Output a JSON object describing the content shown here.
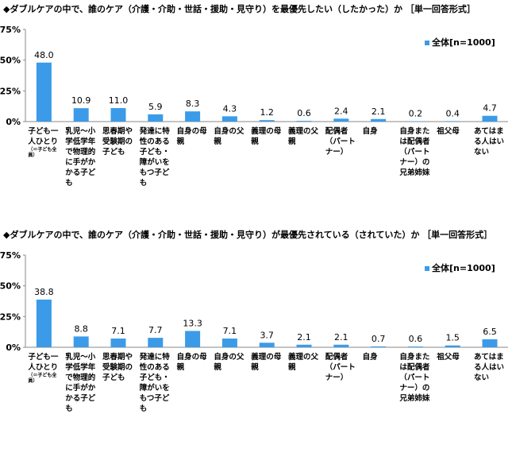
{
  "chart_data": [
    {
      "type": "bar",
      "title": "◆ダブルケアの中で、誰のケア（介護・介助・世話・援助・見守り）を最優先したい（したかった）か ［単一回答形式］",
      "legend": "全体[n=1000]",
      "legend_position": "top-right",
      "ylim": [
        0,
        75
      ],
      "yticks": [
        "0%",
        "25%",
        "50%",
        "75%"
      ],
      "ytick_values": [
        0,
        25,
        50,
        75
      ],
      "grid": false,
      "bar_color": "#3b9be8",
      "categories": [
        "子ども一人ひとり",
        "乳児～小学低学年で物理的に手がかかる子ども",
        "思春期や受験期の子ども",
        "発達に特性のある子ども・障がいをもつ子ども",
        "自身の母親",
        "自身の父親",
        "義理の母親",
        "義理の父親",
        "配偶者（パートナー）",
        "自身",
        "自身または配偶者（パートナー）の兄弟姉妹",
        "祖父母",
        "あてはまる人はいない"
      ],
      "category_notes": [
        "（＝子ども全員）",
        "",
        "",
        "",
        "",
        "",
        "",
        "",
        "",
        "",
        "",
        "",
        ""
      ],
      "values": [
        48.0,
        10.9,
        11.0,
        5.9,
        8.3,
        4.3,
        1.2,
        0.6,
        2.4,
        2.1,
        0.2,
        0.4,
        4.7
      ],
      "value_labels": [
        "48.0",
        "10.9",
        "11.0",
        "5.9",
        "8.3",
        "4.3",
        "1.2",
        "0.6",
        "2.4",
        "2.1",
        "0.2",
        "0.4",
        "4.7"
      ]
    },
    {
      "type": "bar",
      "title": "◆ダブルケアの中で、誰のケア（介護・介助・世話・援助・見守り）が最優先されている（されていた）か ［単一回答形式］",
      "legend": "全体[n=1000]",
      "legend_position": "top-right",
      "ylim": [
        0,
        75
      ],
      "yticks": [
        "0%",
        "25%",
        "50%",
        "75%"
      ],
      "ytick_values": [
        0,
        25,
        50,
        75
      ],
      "grid": false,
      "bar_color": "#3b9be8",
      "categories": [
        "子ども一人ひとり",
        "乳児～小学低学年で物理的に手がかかる子ども",
        "思春期や受験期の子ども",
        "発達に特性のある子ども・障がいをもつ子ども",
        "自身の母親",
        "自身の父親",
        "義理の母親",
        "義理の父親",
        "配偶者（パートナー）",
        "自身",
        "自身または配偶者（パートナー）の兄弟姉妹",
        "祖父母",
        "あてはまる人はいない"
      ],
      "category_notes": [
        "（＝子ども全員）",
        "",
        "",
        "",
        "",
        "",
        "",
        "",
        "",
        "",
        "",
        "",
        ""
      ],
      "values": [
        38.8,
        8.8,
        7.1,
        7.7,
        13.3,
        7.1,
        3.7,
        2.1,
        2.1,
        0.7,
        0.6,
        1.5,
        6.5
      ],
      "value_labels": [
        "38.8",
        "8.8",
        "7.1",
        "7.7",
        "13.3",
        "7.1",
        "3.7",
        "2.1",
        "2.1",
        "0.7",
        "0.6",
        "1.5",
        "6.5"
      ]
    }
  ]
}
